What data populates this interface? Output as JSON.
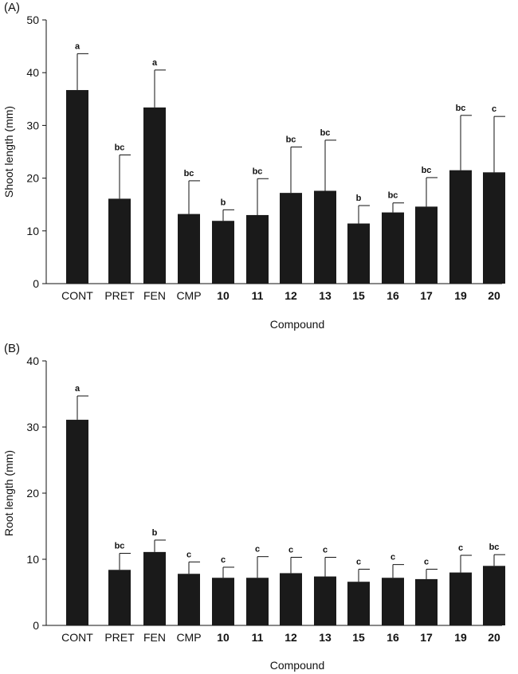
{
  "chart_data": [
    {
      "type": "bar",
      "panel": "(A)",
      "ylabel": "Shoot length (mm)",
      "xlabel": "Compound",
      "ylim": [
        0,
        50
      ],
      "yticks": [
        0,
        10,
        20,
        30,
        40,
        50
      ],
      "categories": [
        "CONT",
        "PRET",
        "FEN",
        "CMP",
        "10",
        "11",
        "12",
        "13",
        "15",
        "16",
        "17",
        "19",
        "20"
      ],
      "bold_categories": [
        "10",
        "11",
        "12",
        "13",
        "15",
        "16",
        "17",
        "19",
        "20"
      ],
      "values": [
        36.7,
        16.1,
        33.4,
        13.2,
        11.9,
        13.0,
        17.2,
        17.6,
        11.4,
        13.5,
        14.6,
        21.5,
        21.1
      ],
      "errors": [
        6.9,
        8.3,
        7.1,
        6.3,
        2.1,
        6.9,
        8.7,
        9.6,
        3.4,
        1.8,
        5.5,
        10.4,
        10.6
      ],
      "letters": [
        "a",
        "bc",
        "a",
        "bc",
        "b",
        "bc",
        "bc",
        "bc",
        "b",
        "bc",
        "bc",
        "bc",
        "c"
      ]
    },
    {
      "type": "bar",
      "panel": "(B)",
      "ylabel": "Root length (mm)",
      "xlabel": "Compound",
      "ylim": [
        0,
        40
      ],
      "yticks": [
        0,
        10,
        20,
        30,
        40
      ],
      "categories": [
        "CONT",
        "PRET",
        "FEN",
        "CMP",
        "10",
        "11",
        "12",
        "13",
        "15",
        "16",
        "17",
        "19",
        "20"
      ],
      "bold_categories": [
        "10",
        "11",
        "12",
        "13",
        "15",
        "16",
        "17",
        "19",
        "20"
      ],
      "values": [
        31.1,
        8.4,
        11.1,
        7.8,
        7.2,
        7.2,
        7.9,
        7.4,
        6.6,
        7.2,
        7.0,
        8.0,
        9.0
      ],
      "errors": [
        3.6,
        2.5,
        1.8,
        1.8,
        1.6,
        3.2,
        2.4,
        2.9,
        1.9,
        2.0,
        1.5,
        2.6,
        1.7
      ],
      "letters": [
        "a",
        "bc",
        "b",
        "c",
        "c",
        "c",
        "c",
        "c",
        "c",
        "c",
        "c",
        "c",
        "bc"
      ]
    }
  ]
}
